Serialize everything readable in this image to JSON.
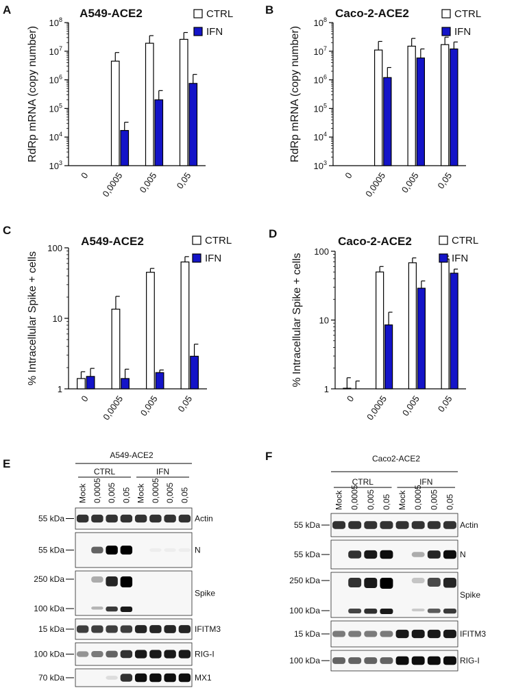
{
  "colors": {
    "ctrl_fill": "#ffffff",
    "ifn_fill": "#1414c8",
    "stroke": "#000000"
  },
  "panels": {
    "A": {
      "letter": "A",
      "title": "A549-ACE2"
    },
    "B": {
      "letter": "B",
      "title": "Caco-2-ACE2"
    },
    "C": {
      "letter": "C",
      "title": "A549-ACE2"
    },
    "D": {
      "letter": "D",
      "title": "Caco-2-ACE2"
    },
    "E": {
      "letter": "E",
      "title": "A549-ACE2"
    },
    "F": {
      "letter": "F",
      "title": "Caco2-ACE2"
    }
  },
  "chart_data": [
    {
      "id": "A",
      "type": "bar",
      "title": "A549-ACE2",
      "ylabel": "RdRp mRNA (copy number)",
      "yscale": "log",
      "ylim": [
        1000,
        100000000
      ],
      "yticks": [
        "10^3",
        "10^4",
        "10^5",
        "10^6",
        "10^7",
        "10^8"
      ],
      "categories": [
        "0",
        "0,0005",
        "0,005",
        "0,05"
      ],
      "legend": [
        "CTRL",
        "IFN"
      ],
      "legend_position": "top-right",
      "series": [
        {
          "name": "CTRL",
          "values": [
            1000,
            4500000,
            19000000,
            26000000
          ],
          "errors": [
            0,
            9000000,
            35000000,
            45000000
          ]
        },
        {
          "name": "IFN",
          "values": [
            1000,
            17000,
            200000,
            750000
          ],
          "errors": [
            0,
            33000,
            420000,
            1550000
          ]
        }
      ]
    },
    {
      "id": "B",
      "type": "bar",
      "title": "Caco-2-ACE2",
      "ylabel": "RdRp mRNA (copy number)",
      "yscale": "log",
      "ylim": [
        1000,
        100000000
      ],
      "yticks": [
        "10^3",
        "10^4",
        "10^5",
        "10^6",
        "10^7",
        "10^8"
      ],
      "categories": [
        "0",
        "0,0005",
        "0,005",
        "0,05"
      ],
      "legend": [
        "CTRL",
        "IFN"
      ],
      "legend_position": "top-right",
      "series": [
        {
          "name": "CTRL",
          "values": [
            1000,
            11000000,
            15000000,
            17000000
          ],
          "errors": [
            0,
            22000000,
            28000000,
            31000000
          ]
        },
        {
          "name": "IFN",
          "values": [
            1000,
            1200000,
            5800000,
            12000000
          ],
          "errors": [
            0,
            2700000,
            12000000,
            21000000
          ]
        }
      ]
    },
    {
      "id": "C",
      "type": "bar",
      "title": "A549-ACE2",
      "ylabel": "% Intracellular Spike + cells",
      "yscale": "log",
      "ylim": [
        1,
        100
      ],
      "yticks": [
        "1",
        "10",
        "100"
      ],
      "categories": [
        "0",
        "0,0005",
        "0,005",
        "0,05"
      ],
      "legend": [
        "CTRL",
        "IFN"
      ],
      "legend_position": "top-right",
      "series": [
        {
          "name": "CTRL",
          "values": [
            1.4,
            13.5,
            45,
            63
          ],
          "errors": [
            1.75,
            20.5,
            51,
            75
          ]
        },
        {
          "name": "IFN",
          "values": [
            1.5,
            1.4,
            1.7,
            2.9
          ],
          "errors": [
            1.95,
            1.9,
            1.85,
            4.3
          ]
        }
      ]
    },
    {
      "id": "D",
      "type": "bar",
      "title": "Caco-2-ACE2",
      "ylabel": "% Intracellular Spike + cells",
      "yscale": "log",
      "ylim": [
        1,
        100
      ],
      "yticks": [
        "1",
        "10",
        "100"
      ],
      "categories": [
        "0",
        "0,0005",
        "0,005",
        "0,05"
      ],
      "legend": [
        "CTRL",
        "IFN"
      ],
      "legend_position": "top-right",
      "series": [
        {
          "name": "CTRL",
          "values": [
            1.02,
            50,
            68,
            77
          ],
          "errors": [
            1.45,
            60,
            80,
            85
          ]
        },
        {
          "name": "IFN",
          "values": [
            1,
            8.5,
            29,
            48
          ],
          "errors": [
            1.3,
            13,
            37,
            55
          ]
        }
      ]
    }
  ],
  "blots": {
    "E": {
      "cell_line": "A549-ACE2",
      "groups": [
        "CTRL",
        "IFN"
      ],
      "lanes": [
        "Mock",
        "0,0005",
        "0,005",
        "0,05",
        "Mock",
        "0,0005",
        "0,005",
        "0,05"
      ],
      "rows": [
        {
          "kda": [
            "55 kDa"
          ],
          "label": "Actin",
          "intensity": [
            0.8,
            0.8,
            0.8,
            0.8,
            0.8,
            0.8,
            0.8,
            0.8
          ]
        },
        {
          "kda": [
            "55 kDa"
          ],
          "label": "N",
          "intensity": [
            0,
            0.6,
            1,
            1,
            0,
            0.04,
            0.04,
            0.04
          ]
        },
        {
          "kda": [
            "250 kDa",
            "100 kDa"
          ],
          "label": "Spike",
          "intensity": [
            0,
            0.3,
            0.85,
            1,
            0,
            0,
            0,
            0
          ]
        },
        {
          "kda": [
            "15 kDa"
          ],
          "label": "IFITM3",
          "intensity": [
            0.75,
            0.75,
            0.75,
            0.75,
            0.85,
            0.85,
            0.85,
            0.85
          ]
        },
        {
          "kda": [
            "100 kDa"
          ],
          "label": "RIG-I",
          "intensity": [
            0.4,
            0.5,
            0.6,
            0.8,
            0.9,
            0.9,
            0.9,
            0.9
          ]
        },
        {
          "kda": [
            "70 kDa"
          ],
          "label": "MX1",
          "intensity": [
            0,
            0,
            0.1,
            0.8,
            0.95,
            0.95,
            0.95,
            0.95
          ]
        }
      ]
    },
    "F": {
      "cell_line": "Caco2-ACE2",
      "groups": [
        "CTRL",
        "IFN"
      ],
      "lanes": [
        "Mock",
        "0,0005",
        "0,005",
        "0,05",
        "Mock",
        "0,0005",
        "0,005",
        "0,05"
      ],
      "rows": [
        {
          "kda": [
            "55 kDa"
          ],
          "label": "Actin",
          "intensity": [
            0.8,
            0.8,
            0.8,
            0.8,
            0.8,
            0.8,
            0.8,
            0.8
          ]
        },
        {
          "kda": [
            "55 kDa"
          ],
          "label": "N",
          "intensity": [
            0,
            0.8,
            0.9,
            0.95,
            0,
            0.3,
            0.85,
            0.95
          ]
        },
        {
          "kda": [
            "250 kDa",
            "100 kDa"
          ],
          "label": "Spike",
          "intensity": [
            0,
            0.8,
            0.9,
            1,
            0,
            0.2,
            0.7,
            0.85
          ]
        },
        {
          "kda": [
            "15 kDa"
          ],
          "label": "IFITM3",
          "intensity": [
            0.5,
            0.5,
            0.5,
            0.5,
            0.9,
            0.9,
            0.9,
            0.9
          ]
        },
        {
          "kda": [
            "100 kDa"
          ],
          "label": "RIG-I",
          "intensity": [
            0.6,
            0.6,
            0.6,
            0.6,
            0.95,
            0.95,
            0.95,
            0.95
          ]
        }
      ]
    }
  }
}
